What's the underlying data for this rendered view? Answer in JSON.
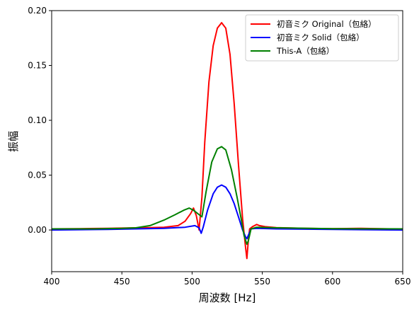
{
  "chart_data": {
    "type": "line",
    "title": "",
    "xlabel": "周波数 [Hz]",
    "ylabel": "振幅",
    "xlim": [
      400,
      650
    ],
    "ylim": [
      -0.038,
      0.2
    ],
    "xticks": [
      400,
      450,
      500,
      550,
      600,
      650
    ],
    "xtick_labels": [
      "400",
      "450",
      "500",
      "550",
      "600",
      "650"
    ],
    "yticks": [
      0.0,
      0.05,
      0.1,
      0.15,
      0.2
    ],
    "ytick_labels": [
      "0.00",
      "0.05",
      "0.10",
      "0.15",
      "0.20"
    ],
    "grid": false,
    "legend_position": "top-right",
    "series": [
      {
        "name": "初音ミク Original（包絡）",
        "color": "#ff0000",
        "x": [
          400,
          420,
          440,
          460,
          470,
          480,
          490,
          495,
          499,
          501,
          503,
          505,
          507,
          509,
          512,
          515,
          518,
          521,
          524,
          527,
          530,
          533,
          536,
          538,
          539,
          540,
          541,
          543,
          546,
          548,
          552,
          560,
          580,
          600,
          620,
          640,
          650
        ],
        "y": [
          0.001,
          0.0012,
          0.0015,
          0.002,
          0.0022,
          0.0025,
          0.004,
          0.008,
          0.015,
          0.02,
          0.013,
          0.0,
          0.03,
          0.08,
          0.135,
          0.168,
          0.184,
          0.189,
          0.184,
          0.16,
          0.115,
          0.06,
          0.01,
          -0.015,
          -0.026,
          -0.01,
          0.001,
          0.003,
          0.005,
          0.004,
          0.003,
          0.0022,
          0.0015,
          0.0012,
          0.0015,
          0.001,
          0.001
        ]
      },
      {
        "name": "初音ミク Solid（包絡）",
        "color": "#0000ff",
        "x": [
          400,
          440,
          460,
          480,
          495,
          502,
          505,
          506.5,
          508,
          511,
          515,
          518,
          521,
          524,
          527,
          530,
          533,
          536,
          538,
          539,
          540,
          542,
          546,
          560,
          600,
          650
        ],
        "y": [
          0.0,
          0.0005,
          0.001,
          0.0015,
          0.0025,
          0.004,
          0.002,
          -0.003,
          0.003,
          0.018,
          0.033,
          0.039,
          0.041,
          0.039,
          0.033,
          0.024,
          0.012,
          0.0,
          -0.006,
          -0.008,
          -0.005,
          0.001,
          0.0015,
          0.001,
          0.0005,
          0.0
        ]
      },
      {
        "name": "This-A（包絡）",
        "color": "#008000",
        "x": [
          400,
          430,
          450,
          460,
          470,
          480,
          488,
          494,
          498,
          501,
          503,
          505,
          507,
          510,
          514,
          518,
          521,
          524,
          528,
          532,
          535,
          537,
          539,
          540,
          542,
          546,
          560,
          600,
          650
        ],
        "y": [
          0.001,
          0.001,
          0.0015,
          0.002,
          0.004,
          0.009,
          0.014,
          0.018,
          0.02,
          0.018,
          0.016,
          0.014,
          0.012,
          0.035,
          0.062,
          0.074,
          0.076,
          0.073,
          0.055,
          0.03,
          0.01,
          -0.005,
          -0.013,
          -0.01,
          0.001,
          0.0025,
          0.002,
          0.0012,
          0.001
        ]
      }
    ]
  }
}
